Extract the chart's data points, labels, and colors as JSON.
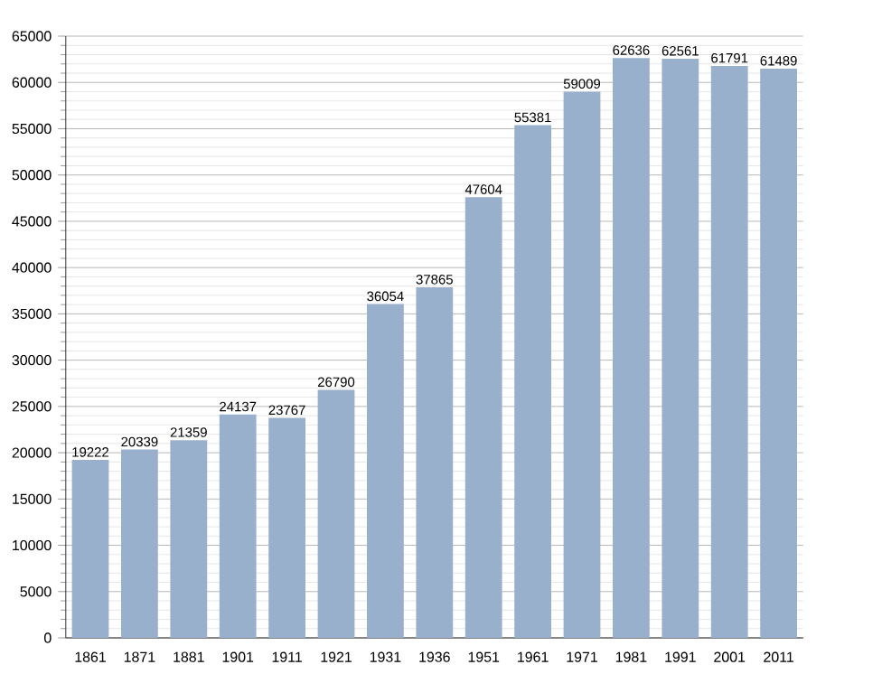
{
  "chart_data": {
    "type": "bar",
    "categories": [
      "1861",
      "1871",
      "1881",
      "1901",
      "1911",
      "1921",
      "1931",
      "1936",
      "1951",
      "1961",
      "1971",
      "1981",
      "1991",
      "2001",
      "2011"
    ],
    "values": [
      19222,
      20339,
      21359,
      24137,
      23767,
      26790,
      36054,
      37865,
      47604,
      55381,
      59009,
      62636,
      62561,
      61791,
      61489
    ],
    "color": "#98b0cc",
    "data_labels": true,
    "grid": "y",
    "ylim": [
      0,
      65000
    ],
    "yticks": [
      0,
      5000,
      10000,
      15000,
      20000,
      25000,
      30000,
      35000,
      40000,
      45000,
      50000,
      55000,
      60000,
      65000
    ]
  }
}
